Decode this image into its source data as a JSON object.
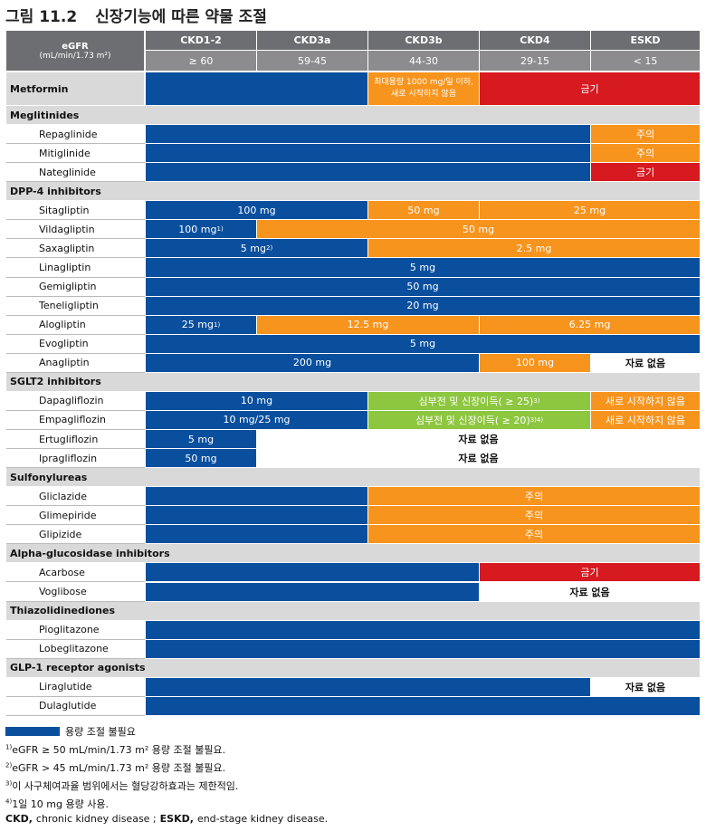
{
  "title": {
    "number": "그림 11.2",
    "text": "신장기능에 따른 약물 조절"
  },
  "header": {
    "label": "eGFR",
    "unit": "(mL/min/1.73 m²)",
    "stages": [
      {
        "name": "CKD1-2",
        "range": "≥ 60"
      },
      {
        "name": "CKD3a",
        "range": "59-45"
      },
      {
        "name": "CKD3b",
        "range": "44-30"
      },
      {
        "name": "CKD4",
        "range": "29-15"
      },
      {
        "name": "ESKD",
        "range": "< 15"
      }
    ]
  },
  "metformin": {
    "name": "Metformin",
    "cells": [
      {
        "span": 2,
        "color": "#0a4f9e"
      },
      {
        "span": 1,
        "color": "#f7941d",
        "lines": [
          "최대용량 1000 mg/일 이하,",
          "새로 시작하지 않음"
        ]
      },
      {
        "span": 2,
        "color": "#d71920",
        "text": "금기"
      }
    ]
  },
  "groups": [
    {
      "name": "Meglitinides",
      "drugs": [
        {
          "name": "Repaglinide",
          "cells": [
            {
              "span": 4,
              "color": "#0a4f9e"
            },
            {
              "span": 1,
              "color": "#f7941d",
              "text": "주의"
            }
          ]
        },
        {
          "name": "Mitiglinide",
          "cells": [
            {
              "span": 4,
              "color": "#0a4f9e"
            },
            {
              "span": 1,
              "color": "#f7941d",
              "text": "주의"
            }
          ]
        },
        {
          "name": "Nateglinide",
          "cells": [
            {
              "span": 4,
              "color": "#0a4f9e"
            },
            {
              "span": 1,
              "color": "#d71920",
              "text": "금기"
            }
          ]
        }
      ]
    },
    {
      "name": "DPP-4 inhibitors",
      "drugs": [
        {
          "name": "Sitagliptin",
          "cells": [
            {
              "span": 2,
              "color": "#0a4f9e",
              "text": "100 mg"
            },
            {
              "span": 1,
              "color": "#f7941d",
              "text": "50 mg"
            },
            {
              "span": 2,
              "color": "#f7941d",
              "text": "25 mg"
            }
          ]
        },
        {
          "name": "Vildagliptin",
          "cells": [
            {
              "span": 1,
              "color": "#0a4f9e",
              "text": "100 mg",
              "sup": "1)"
            },
            {
              "span": 4,
              "color": "#f7941d",
              "text": "50 mg"
            }
          ]
        },
        {
          "name": "Saxagliptin",
          "cells": [
            {
              "span": 2,
              "color": "#0a4f9e",
              "text": "5 mg",
              "sup": "2)"
            },
            {
              "span": 3,
              "color": "#f7941d",
              "text": "2.5 mg"
            }
          ]
        },
        {
          "name": "Linagliptin",
          "cells": [
            {
              "span": 5,
              "color": "#0a4f9e",
              "text": "5 mg"
            }
          ]
        },
        {
          "name": "Gemigliptin",
          "cells": [
            {
              "span": 5,
              "color": "#0a4f9e",
              "text": "50 mg"
            }
          ]
        },
        {
          "name": "Teneligliptin",
          "cells": [
            {
              "span": 5,
              "color": "#0a4f9e",
              "text": "20 mg"
            }
          ]
        },
        {
          "name": "Alogliptin",
          "cells": [
            {
              "span": 1,
              "color": "#0a4f9e",
              "text": "25 mg",
              "sup": "1)"
            },
            {
              "span": 2,
              "color": "#f7941d",
              "text": "12.5 mg"
            },
            {
              "span": 2,
              "color": "#f7941d",
              "text": "6.25 mg"
            }
          ]
        },
        {
          "name": "Evogliptin",
          "cells": [
            {
              "span": 5,
              "color": "#0a4f9e",
              "text": "5 mg"
            }
          ]
        },
        {
          "name": "Anagliptin",
          "cells": [
            {
              "span": 3,
              "color": "#0a4f9e",
              "text": "200 mg"
            },
            {
              "span": 1,
              "color": "#f7941d",
              "text": "100 mg"
            },
            {
              "span": 1,
              "color": "#ffffff",
              "text": "자료 없음"
            }
          ]
        }
      ]
    },
    {
      "name": "SGLT2 inhibitors",
      "drugs": [
        {
          "name": "Dapagliflozin",
          "cells": [
            {
              "span": 2,
              "color": "#0a4f9e",
              "text": "10 mg"
            },
            {
              "span": 2,
              "color": "#8dc63f",
              "text": "심부전 및 신장이득( ≥ 25)",
              "sup": "3)"
            },
            {
              "span": 1,
              "color": "#f7941d",
              "text": "새로 시작하지 않음"
            }
          ]
        },
        {
          "name": "Empagliflozin",
          "cells": [
            {
              "span": 2,
              "color": "#0a4f9e",
              "text": "10 mg/25 mg"
            },
            {
              "span": 2,
              "color": "#8dc63f",
              "text": "심부전 및 신장이득( ≥ 20)",
              "sup": "3)4)"
            },
            {
              "span": 1,
              "color": "#f7941d",
              "text": "새로 시작하지 않음"
            }
          ]
        },
        {
          "name": "Ertugliflozin",
          "cells": [
            {
              "span": 1,
              "color": "#0a4f9e",
              "text": "5 mg"
            },
            {
              "span": 4,
              "color": "#ffffff",
              "text": "자료 없음"
            }
          ]
        },
        {
          "name": "Ipragliflozin",
          "cells": [
            {
              "span": 1,
              "color": "#0a4f9e",
              "text": "50 mg"
            },
            {
              "span": 4,
              "color": "#ffffff",
              "text": "자료 없음"
            }
          ]
        }
      ]
    },
    {
      "name": "Sulfonylureas",
      "drugs": [
        {
          "name": "Gliclazide",
          "cells": [
            {
              "span": 2,
              "color": "#0a4f9e"
            },
            {
              "span": 3,
              "color": "#f7941d",
              "text": "주의"
            }
          ]
        },
        {
          "name": "Glimepiride",
          "cells": [
            {
              "span": 2,
              "color": "#0a4f9e"
            },
            {
              "span": 3,
              "color": "#f7941d",
              "text": "주의"
            }
          ]
        },
        {
          "name": "Glipizide",
          "cells": [
            {
              "span": 2,
              "color": "#0a4f9e"
            },
            {
              "span": 3,
              "color": "#f7941d",
              "text": "주의"
            }
          ]
        }
      ]
    },
    {
      "name": "Alpha-glucosidase inhibitors",
      "drugs": [
        {
          "name": "Acarbose",
          "cells": [
            {
              "span": 3,
              "color": "#0a4f9e"
            },
            {
              "span": 2,
              "color": "#d71920",
              "text": "금기"
            }
          ]
        },
        {
          "name": "Voglibose",
          "cells": [
            {
              "span": 3,
              "color": "#0a4f9e"
            },
            {
              "span": 2,
              "color": "#ffffff",
              "text": "자료 없음"
            }
          ]
        }
      ]
    },
    {
      "name": "Thiazolidinediones",
      "drugs": [
        {
          "name": "Pioglitazone",
          "cells": [
            {
              "span": 5,
              "color": "#0a4f9e"
            }
          ]
        },
        {
          "name": "Lobeglitazone",
          "cells": [
            {
              "span": 5,
              "color": "#0a4f9e"
            }
          ]
        }
      ]
    },
    {
      "name": "GLP-1 receptor agonists",
      "drugs": [
        {
          "name": "Liraglutide",
          "cells": [
            {
              "span": 4,
              "color": "#0a4f9e"
            },
            {
              "span": 1,
              "color": "#ffffff",
              "text": "자료 없음"
            }
          ]
        },
        {
          "name": "Dulaglutide",
          "cells": [
            {
              "span": 5,
              "color": "#0a4f9e"
            }
          ]
        }
      ]
    }
  ],
  "legend": {
    "color": "#0a4f9e",
    "text": "용량 조절 불필요"
  },
  "notes": [
    {
      "mark": "1)",
      "text": "eGFR ≥ 50 mL/min/1.73 m² 용량 조절 불필요."
    },
    {
      "mark": "2)",
      "text": "eGFR > 45 mL/min/1.73 m² 용량 조절 불필요."
    },
    {
      "mark": "3)",
      "text": "이 사구체여과율 범위에서는 혈당강하효과는 제한적임."
    },
    {
      "mark": "4)",
      "text": "1일 10 mg 용량 사용."
    }
  ],
  "abbrev": [
    {
      "term": "CKD,",
      "text": "chronic kidney disease ;"
    },
    {
      "term": "ESKD,",
      "text": "end-stage kidney disease."
    }
  ]
}
